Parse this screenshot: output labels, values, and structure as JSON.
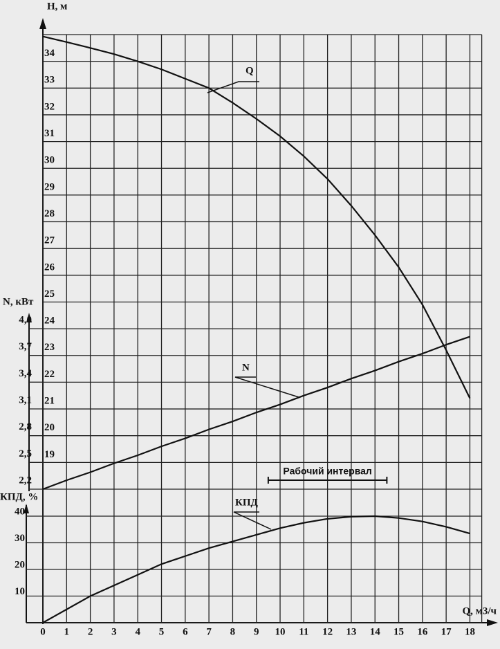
{
  "chart_data": {
    "type": "line",
    "x_label": "Q, м3/ч",
    "y_label": "H, м",
    "y2_label": "N, кВт",
    "y3_label": "КПД, %",
    "x": [
      0,
      1,
      2,
      3,
      4,
      5,
      6,
      7,
      8,
      9,
      10,
      11,
      12,
      13,
      14,
      15,
      16,
      17,
      18
    ],
    "xlim": [
      0,
      18.5
    ],
    "xticks": [
      0,
      1,
      2,
      3,
      4,
      5,
      6,
      7,
      8,
      9,
      10,
      11,
      12,
      13,
      14,
      15,
      16,
      17,
      18
    ],
    "ylim": [
      18,
      35
    ],
    "yticks": [
      19,
      20,
      21,
      22,
      23,
      24,
      25,
      26,
      27,
      28,
      29,
      30,
      31,
      32,
      33,
      34
    ],
    "y2lim": [
      2.2,
      4.0
    ],
    "y2ticks": [
      {
        "value": 2.2,
        "label": "2,2"
      },
      {
        "value": 2.5,
        "label": "2,5"
      },
      {
        "value": 2.8,
        "label": "2,8"
      },
      {
        "value": 3.1,
        "label": "3,1"
      },
      {
        "value": 3.4,
        "label": "3,4"
      },
      {
        "value": 3.7,
        "label": "3,7"
      },
      {
        "value": 4.0,
        "label": "4,0"
      }
    ],
    "y3lim": [
      0,
      40
    ],
    "y3ticks": [
      10,
      20,
      30,
      40
    ],
    "grid": true,
    "series": [
      {
        "name": "Q",
        "color": "#111111",
        "axis": "y",
        "values": [
          34.93,
          34.72,
          34.5,
          34.27,
          34.0,
          33.7,
          33.35,
          33.0,
          32.45,
          31.85,
          31.2,
          30.45,
          29.6,
          28.6,
          27.5,
          26.3,
          24.9,
          23.2,
          21.4
        ]
      },
      {
        "name": "N",
        "color": "#111111",
        "axis": "y2",
        "values": [
          2.2,
          2.3,
          2.39,
          2.49,
          2.58,
          2.68,
          2.77,
          2.87,
          2.96,
          3.06,
          3.15,
          3.25,
          3.34,
          3.44,
          3.53,
          3.63,
          3.72,
          3.82,
          3.91
        ]
      },
      {
        "name": "КПД",
        "color": "#111111",
        "axis": "y3",
        "values": [
          0,
          5,
          10,
          14,
          18,
          22,
          25,
          28,
          30.5,
          33,
          35.5,
          37.5,
          39,
          39.8,
          40,
          39.3,
          38,
          36,
          33.5
        ]
      }
    ],
    "working_interval": {
      "label": "Рабочий интервал",
      "range": [
        9.5,
        14.5
      ]
    }
  }
}
